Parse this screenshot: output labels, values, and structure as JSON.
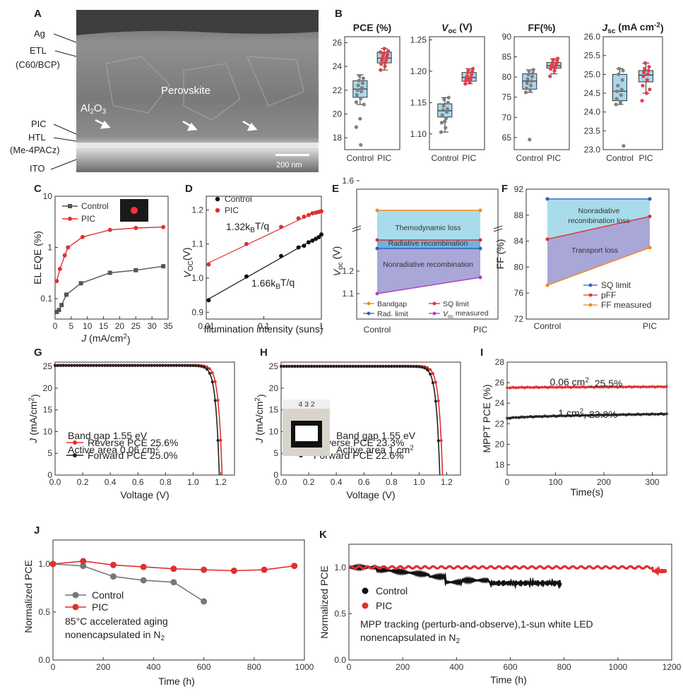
{
  "panels": {
    "A": {
      "label": "A",
      "layers": [
        "Ag",
        "ETL",
        "(C60/BCP)",
        "PIC",
        "HTL",
        "(Me-4PACz)",
        "ITO"
      ],
      "inner_labels": {
        "perovskite": "Perovskite",
        "al2o3": "Al",
        "al2o3_sub1": "2",
        "al2o3_mid": "O",
        "al2o3_sub2": "3"
      },
      "scalebar": "200 nm"
    },
    "B": {
      "label": "B"
    },
    "C": {
      "label": "C"
    },
    "D": {
      "label": "D"
    },
    "E": {
      "label": "E"
    },
    "F": {
      "label": "F"
    },
    "G": {
      "label": "G"
    },
    "H": {
      "label": "H"
    },
    "I": {
      "label": "I"
    },
    "J": {
      "label": "J"
    },
    "K": {
      "label": "K"
    }
  },
  "chart_data": [
    {
      "id": "B-PCE",
      "type": "box",
      "title": "PCE (%)",
      "categories": [
        "Control",
        "PIC"
      ],
      "ylim": [
        17,
        26.5
      ],
      "yticks": [
        18,
        20,
        22,
        24,
        26
      ],
      "boxes": [
        {
          "q1": 21.4,
          "median": 22.1,
          "q3": 22.8,
          "lo": 20.8,
          "hi": 23.3
        },
        {
          "q1": 24.3,
          "median": 24.7,
          "q3": 25.2,
          "lo": 23.7,
          "hi": 25.5
        }
      ],
      "points": [
        [
          21.0,
          21.3,
          21.6,
          21.9,
          22.0,
          22.2,
          22.4,
          22.6,
          22.8,
          23.0,
          23.2,
          20.8,
          19.6,
          18.9,
          17.4
        ],
        [
          23.7,
          24.0,
          24.2,
          24.4,
          24.5,
          24.6,
          24.7,
          24.8,
          24.9,
          25.0,
          25.1,
          25.3,
          25.5,
          25.2,
          24.3
        ]
      ]
    },
    {
      "id": "B-Voc",
      "type": "box",
      "title": "V",
      "title_sub": "oc",
      "title_unit": " (V)",
      "categories": [
        "Control",
        "PIC"
      ],
      "ylim": [
        1.075,
        1.255
      ],
      "yticks": [
        1.1,
        1.15,
        1.2,
        1.25
      ],
      "ytick_labels": [
        "1.10",
        "1.15",
        "1.20",
        "1.25"
      ],
      "boxes": [
        {
          "q1": 1.127,
          "median": 1.137,
          "q3": 1.148,
          "lo": 1.103,
          "hi": 1.158
        },
        {
          "q1": 1.184,
          "median": 1.19,
          "q3": 1.198,
          "lo": 1.18,
          "hi": 1.204
        }
      ],
      "points": [
        [
          1.103,
          1.11,
          1.118,
          1.125,
          1.13,
          1.135,
          1.138,
          1.14,
          1.145,
          1.15,
          1.155,
          1.158,
          1.12
        ],
        [
          1.18,
          1.183,
          1.185,
          1.187,
          1.189,
          1.19,
          1.192,
          1.195,
          1.198,
          1.2,
          1.202,
          1.204,
          1.186
        ]
      ]
    },
    {
      "id": "B-FF",
      "type": "box",
      "title": "FF(%)",
      "categories": [
        "Control",
        "PIC"
      ],
      "ylim": [
        62,
        90
      ],
      "yticks": [
        65,
        70,
        75,
        80,
        85,
        90
      ],
      "boxes": [
        {
          "q1": 77.0,
          "median": 79.0,
          "q3": 80.8,
          "lo": 76.2,
          "hi": 81.8
        },
        {
          "q1": 82.2,
          "median": 82.8,
          "q3": 83.6,
          "lo": 80.8,
          "hi": 84.5
        }
      ],
      "points": [
        [
          76.2,
          76.8,
          77.2,
          77.9,
          78.5,
          79.0,
          79.5,
          80.1,
          80.6,
          81.0,
          81.5,
          81.8,
          64.5
        ],
        [
          80.2,
          81.5,
          82.0,
          82.3,
          82.6,
          82.8,
          83.0,
          83.3,
          83.6,
          84.0,
          84.3,
          84.6,
          82.5
        ]
      ]
    },
    {
      "id": "B-Jsc",
      "type": "box",
      "title": "J",
      "title_sub": "sc",
      "title_unit": " (mA cm",
      "title_sup": "-2",
      "title_end": ")",
      "categories": [
        "Control",
        "PIC"
      ],
      "ylim": [
        23.0,
        26.0
      ],
      "yticks": [
        23.0,
        23.5,
        24.0,
        24.5,
        25.0,
        25.5,
        26.0
      ],
      "ytick_labels": [
        "23.0",
        "23.5",
        "24.0",
        "24.5",
        "25.0",
        "25.5",
        "26.0"
      ],
      "boxes": [
        {
          "q1": 24.3,
          "median": 24.55,
          "q3": 25.0,
          "lo": 24.2,
          "hi": 25.15
        },
        {
          "q1": 24.8,
          "median": 24.98,
          "q3": 25.1,
          "lo": 24.5,
          "hi": 25.3
        }
      ],
      "points": [
        [
          24.2,
          24.25,
          24.35,
          24.45,
          24.55,
          24.6,
          24.7,
          24.85,
          25.0,
          25.1,
          25.15,
          23.1
        ],
        [
          24.3,
          24.5,
          24.7,
          24.85,
          24.95,
          25.0,
          25.05,
          25.1,
          25.15,
          25.2,
          25.3,
          24.6
        ]
      ]
    },
    {
      "id": "C",
      "type": "line",
      "xlabel": "J",
      "xlabel_unit": " (mA/cm",
      "xlabel_sup": "2",
      "xlabel_end": ")",
      "ylabel": "EL EQE (%)",
      "ylog": true,
      "ylim": [
        0.04,
        10
      ],
      "yticks": [
        0.1,
        1,
        10
      ],
      "ytick_labels": [
        "0.1",
        "1",
        "10"
      ],
      "xlim": [
        0,
        35
      ],
      "xticks": [
        0,
        5,
        10,
        15,
        20,
        25,
        30,
        35
      ],
      "series": [
        {
          "name": "Control",
          "color": "#555555",
          "x": [
            0.5,
            1.2,
            2,
            3.5,
            8,
            17,
            25,
            33.5
          ],
          "y": [
            0.055,
            0.06,
            0.075,
            0.12,
            0.2,
            0.32,
            0.36,
            0.43
          ]
        },
        {
          "name": "PIC",
          "color": "#e03030",
          "x": [
            0.5,
            1.5,
            3,
            4,
            8.5,
            17,
            25,
            33.5
          ],
          "y": [
            0.22,
            0.38,
            0.7,
            1.0,
            1.6,
            2.2,
            2.4,
            2.5
          ]
        }
      ]
    },
    {
      "id": "D",
      "type": "line",
      "xlabel": "Illumination intensity (suns)",
      "ylabel": "V",
      "ylabel_sub": "OC",
      "ylabel_unit": "(V)",
      "xlog": true,
      "xlim": [
        0.01,
        1
      ],
      "xticks": [
        0.01,
        0.1,
        1
      ],
      "xtick_labels": [
        "0.01",
        "0.1",
        "1"
      ],
      "ylim": [
        0.88,
        1.24
      ],
      "yticks": [
        0.9,
        1.0,
        1.1,
        1.2
      ],
      "ytick_labels": [
        "0.9",
        "1.0",
        "1.1",
        "1.2"
      ],
      "series": [
        {
          "name": "Control",
          "color": "#111111",
          "x": [
            0.011,
            0.05,
            0.2,
            0.4,
            0.5,
            0.6,
            0.7,
            0.8,
            0.9,
            1.0
          ],
          "y": [
            0.935,
            1.005,
            1.065,
            1.09,
            1.095,
            1.105,
            1.11,
            1.115,
            1.12,
            1.128
          ]
        },
        {
          "name": "PIC",
          "color": "#e03030",
          "x": [
            0.011,
            0.05,
            0.2,
            0.4,
            0.5,
            0.6,
            0.7,
            0.8,
            0.9,
            1.0
          ],
          "y": [
            1.04,
            1.1,
            1.15,
            1.175,
            1.18,
            1.185,
            1.19,
            1.192,
            1.194,
            1.196
          ]
        }
      ],
      "fits": [
        {
          "label": "1.32k",
          "label_sub": "B",
          "label_end": "T/q",
          "color": "#e03030"
        },
        {
          "label": "1.66k",
          "label_sub": "B",
          "label_end": "T/q",
          "color": "#111111"
        }
      ]
    },
    {
      "id": "E",
      "type": "area",
      "categories": [
        "Control",
        "PIC"
      ],
      "ylabel": "V",
      "ylabel_sub": "oc",
      "ylabel_unit": " (V)",
      "yticks": [
        1.1,
        1.2,
        1.6
      ],
      "ytick_labels": [
        "1.1",
        "1.2",
        "1.6"
      ],
      "series": [
        {
          "name": "Bandgap",
          "color": "#f08a20",
          "values": [
            1.56,
            1.56
          ]
        },
        {
          "name": "SQ limit",
          "color": "#e03030",
          "values": [
            1.32,
            1.32
          ]
        },
        {
          "name": "Rad. limit",
          "color": "#3060c0",
          "values": [
            1.3,
            1.3
          ]
        },
        {
          "name": "V",
          "name_sub": "oc",
          "name_end": " measured",
          "color": "#b040c0",
          "values": [
            1.1,
            1.15
          ]
        }
      ],
      "regions": [
        "Themodynamic loss",
        "Radiative recombination",
        "Nonradiative recombination"
      ]
    },
    {
      "id": "F",
      "type": "area",
      "categories": [
        "Control",
        "PIC"
      ],
      "ylabel": "FF (%)",
      "ylim": [
        72,
        92
      ],
      "yticks": [
        72,
        76,
        80,
        84,
        88,
        92
      ],
      "series": [
        {
          "name": "SQ limit",
          "color": "#3060c0",
          "values": [
            90.5,
            90.5
          ]
        },
        {
          "name": "pFF",
          "color": "#e03030",
          "values": [
            84.3,
            87.8
          ]
        },
        {
          "name": "FF measured",
          "color": "#f08a20",
          "values": [
            77.2,
            83.0
          ]
        }
      ],
      "regions": [
        "Nonradiative",
        "recombination loss",
        "Transport loss"
      ]
    },
    {
      "id": "G",
      "type": "line",
      "xlabel": "Voltage (V)",
      "ylabel": "J",
      "ylabel_unit": " (mA/cm",
      "ylabel_sup": "2",
      "ylabel_end": ")",
      "xlim": [
        0,
        1.3
      ],
      "xticks": [
        0,
        0.2,
        0.4,
        0.6,
        0.8,
        1.0,
        1.2
      ],
      "xtick_labels": [
        "0.0",
        "0.2",
        "0.4",
        "0.6",
        "0.8",
        "1.0",
        "1.2"
      ],
      "ylim": [
        0,
        26
      ],
      "yticks": [
        0,
        5,
        10,
        15,
        20,
        25
      ],
      "series": [
        {
          "name": "Reverse PCE 25.6%",
          "color": "#e03030",
          "voc": 1.21,
          "jsc": 25.3
        },
        {
          "name": "Forward PCE 25.0%",
          "color": "#222222",
          "voc": 1.19,
          "jsc": 25.2
        }
      ],
      "annotations": [
        "Band gap 1.55 eV",
        "Active area 0.06 cm",
        "2"
      ]
    },
    {
      "id": "H",
      "type": "line",
      "xlabel": "Voltage (V)",
      "ylabel": "J",
      "ylabel_unit": " (mA/cm",
      "ylabel_sup": "2",
      "ylabel_end": ")",
      "xlim": [
        0,
        1.3
      ],
      "xticks": [
        0,
        0.2,
        0.4,
        0.6,
        0.8,
        1.0,
        1.2
      ],
      "xtick_labels": [
        "0.0",
        "0.2",
        "0.4",
        "0.6",
        "0.8",
        "1.0",
        "1.2"
      ],
      "ylim": [
        0,
        26
      ],
      "yticks": [
        0,
        5,
        10,
        15,
        20,
        25
      ],
      "series": [
        {
          "name": "Reverse PCE 23.3%",
          "color": "#e03030",
          "voc": 1.17,
          "jsc": 25.1
        },
        {
          "name": "Forward PCE 22.6%",
          "color": "#222222",
          "voc": 1.15,
          "jsc": 25.0
        }
      ],
      "annotations": [
        "Band gap 1.55 eV",
        "Active area 1 cm",
        "2"
      ],
      "inset_ruler": "4 3 2"
    },
    {
      "id": "I",
      "type": "line",
      "xlabel": "Time(s)",
      "ylabel": "MPPT PCE (%)",
      "xlim": [
        0,
        330
      ],
      "xticks": [
        0,
        100,
        200,
        300
      ],
      "ylim": [
        17,
        28
      ],
      "yticks": [
        18,
        20,
        22,
        24,
        26,
        28
      ],
      "series": [
        {
          "name": "0.06 cm",
          "name_sup": "2",
          "name_end": ", 25.5%",
          "color": "#e03030",
          "y0": 25.5,
          "y1": 25.6
        },
        {
          "name": "1 cm",
          "name_sup": "2",
          "name_end": ", 23.0%",
          "color": "#222222",
          "y0": 22.5,
          "y1": 22.95
        }
      ]
    },
    {
      "id": "J",
      "type": "line",
      "xlabel": "Time (h)",
      "ylabel": "Normalized PCE",
      "xlim": [
        0,
        1000
      ],
      "xticks": [
        0,
        200,
        400,
        600,
        800,
        1000
      ],
      "ylim": [
        0,
        1.25
      ],
      "yticks": [
        0,
        0.5,
        1.0
      ],
      "ytick_labels": [
        "0.0",
        "0.5",
        "1.0"
      ],
      "series": [
        {
          "name": "Control",
          "color": "#777777",
          "x": [
            0,
            120,
            240,
            360,
            480,
            600
          ],
          "y": [
            1.0,
            0.98,
            0.87,
            0.83,
            0.81,
            0.61
          ]
        },
        {
          "name": "PIC",
          "color": "#e03030",
          "x": [
            0,
            120,
            240,
            360,
            480,
            600,
            720,
            840,
            960
          ],
          "y": [
            1.0,
            1.03,
            0.99,
            0.97,
            0.95,
            0.94,
            0.93,
            0.94,
            0.98
          ]
        }
      ],
      "annotations": [
        "85°C accelerated aging",
        "nonencapsulated in N",
        "2"
      ]
    },
    {
      "id": "K",
      "type": "line",
      "xlabel": "Time (h)",
      "ylabel": "Normalized PCE",
      "xlim": [
        0,
        1200
      ],
      "xticks": [
        0,
        200,
        400,
        600,
        800,
        1000,
        1200
      ],
      "ylim": [
        0,
        1.25
      ],
      "yticks": [
        0,
        0.5,
        1.0
      ],
      "ytick_labels": [
        "0.0",
        "0.5",
        "1.0"
      ],
      "series": [
        {
          "name": "Control",
          "color": "#111111",
          "end": 790
        },
        {
          "name": "PIC",
          "color": "#e03030",
          "end": 1180
        }
      ],
      "annotations": [
        "MPP tracking (perturb-and-observe),1-sun white LED",
        "nonencapsulated in N",
        "2"
      ]
    }
  ]
}
